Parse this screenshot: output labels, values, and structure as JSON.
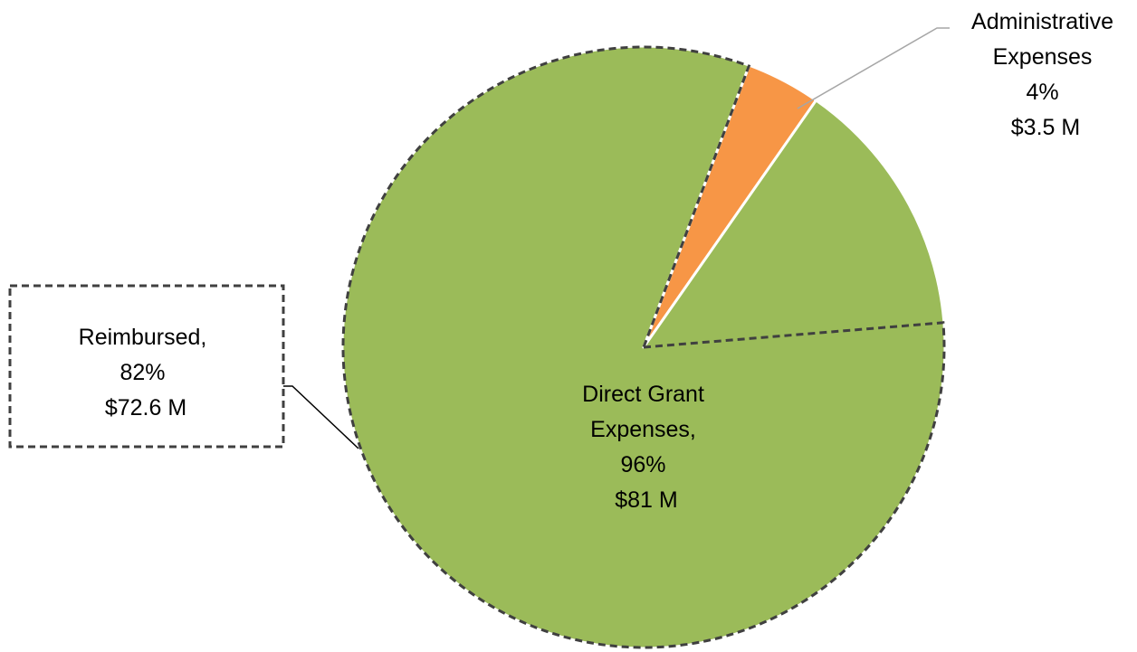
{
  "chart_data": {
    "type": "pie",
    "slices": [
      {
        "name": "Administrative Expenses",
        "percent": 4,
        "amount": "$3.5 M",
        "color": "#F79646",
        "label_lines": [
          "Administrative",
          "Expenses",
          "4%",
          "$3.5 M"
        ]
      },
      {
        "name": "Direct Grant Expenses",
        "percent": 96,
        "amount": "$81 M",
        "color": "#9BBB59",
        "label_lines": [
          "Direct Grant",
          "Expenses,",
          "96%",
          "$81 M"
        ]
      }
    ],
    "sub_segment": {
      "name": "Reimbursed",
      "parent": "Direct Grant Expenses",
      "percent": 82,
      "amount": "$72.6 M",
      "border_color": "#404040",
      "label_lines": [
        "Reimbursed,",
        "82%",
        "$72.6 M"
      ]
    }
  }
}
